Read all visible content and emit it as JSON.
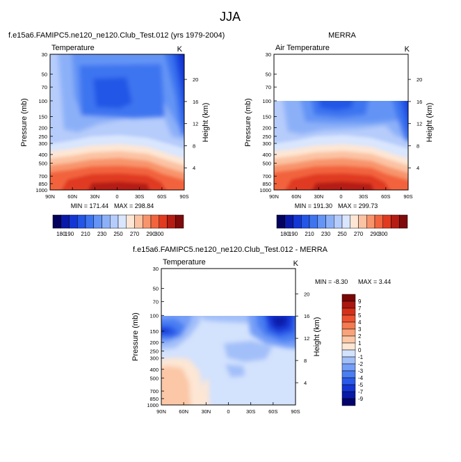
{
  "page_title": "JJA",
  "tick_labels": {
    "pressure": [
      "30",
      "50",
      "70",
      "100",
      "150",
      "200",
      "250",
      "300",
      "400",
      "500",
      "700",
      "850",
      "1000"
    ],
    "height": [
      "20",
      "16",
      "12",
      "8",
      "4"
    ],
    "latitude": [
      "90N",
      "60N",
      "30N",
      "0",
      "30S",
      "60S",
      "90S"
    ]
  },
  "colors": {
    "abs_levels": [
      180,
      190,
      200,
      210,
      220,
      230,
      240,
      250,
      260,
      270,
      280,
      290,
      300
    ],
    "abs_palette": [
      "#03035e",
      "#0a1aa8",
      "#1436d4",
      "#2456e6",
      "#3e74f0",
      "#6494f5",
      "#8cb0f8",
      "#b6ccfb",
      "#d9e6fd",
      "#fde6d4",
      "#fbc3a3",
      "#f8946c",
      "#f2643e",
      "#e03a20",
      "#b51c12",
      "#7e0a0a"
    ],
    "diff_palette": [
      "#04046c",
      "#0a1aa8",
      "#1436d4",
      "#2a5ae8",
      "#4a7ef2",
      "#749ef7",
      "#a2bff9",
      "#d3e2fd",
      "#fde6d4",
      "#fbc7a6",
      "#f8a37a",
      "#f47a50",
      "#ec5230",
      "#d5301a",
      "#ab1610",
      "#7a0606"
    ]
  },
  "chart_data": [
    {
      "type": "contour",
      "panel": "model",
      "title_left": "f.e15a6.FAMIPC5.ne120_ne120.Club_Test.012 (yrs 1979-2004)",
      "title_right": "",
      "label_left": "Temperature",
      "label_right": "K",
      "xlabel": "",
      "ylabel": "Pressure (mb)",
      "ylabel_right": "Height (km)",
      "min_label": "MIN = 171.44",
      "max_label": "MAX = 298.84",
      "min": 171.44,
      "max": 298.84,
      "pressure_top": 30,
      "colorbar": {
        "orientation": "horizontal",
        "labels": [
          "180",
          "190",
          "210",
          "230",
          "250",
          "270",
          "290",
          "300"
        ]
      }
    },
    {
      "type": "contour",
      "panel": "obs",
      "title_left": "",
      "title_right": "MERRA",
      "label_left": "Air Temperature",
      "label_right": "K",
      "xlabel": "",
      "ylabel": "Pressure (mb)",
      "ylabel_right": "Height (km)",
      "min_label": "MIN = 191.30",
      "max_label": "MAX = 299.73",
      "min": 191.3,
      "max": 299.73,
      "pressure_top": 100,
      "colorbar": {
        "orientation": "horizontal",
        "labels": [
          "180",
          "190",
          "210",
          "230",
          "250",
          "270",
          "290",
          "300"
        ]
      }
    },
    {
      "type": "contour",
      "panel": "diff",
      "title": "f.e15a6.FAMIPC5.ne120_ne120.Club_Test.012 - MERRA",
      "label_left": "Temperature",
      "label_right": "K",
      "xlabel": "",
      "ylabel": "Pressure (mb)",
      "ylabel_right": "Height (km)",
      "min_label": "MIN =  -8.30",
      "max_label": "MAX =   3.44",
      "min": -8.3,
      "max": 3.44,
      "pressure_top": 100,
      "colorbar": {
        "orientation": "vertical",
        "labels": [
          "9",
          "7",
          "5",
          "4",
          "3",
          "2",
          "1",
          "0",
          "-1",
          "-2",
          "-3",
          "-4",
          "-5",
          "-7",
          "-9"
        ]
      }
    }
  ]
}
